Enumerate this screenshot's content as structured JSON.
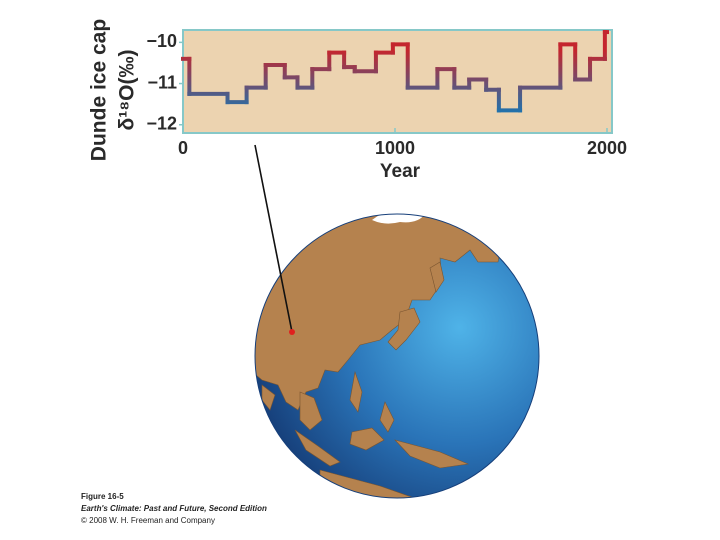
{
  "chart_data": {
    "type": "step",
    "ylabel": [
      "Dunde ice cap",
      "δ¹⁸O(‰)"
    ],
    "xlabel": "Year",
    "x": [
      0,
      30,
      210,
      300,
      390,
      480,
      540,
      610,
      690,
      760,
      810,
      910,
      990,
      1060,
      1200,
      1280,
      1350,
      1430,
      1490,
      1590,
      1780,
      1850,
      1920,
      1990
    ],
    "values": [
      -10.4,
      -11.25,
      -11.45,
      -11.1,
      -10.55,
      -10.85,
      -11.1,
      -10.65,
      -10.25,
      -10.6,
      -10.7,
      -10.25,
      -10.05,
      -11.1,
      -10.65,
      -11.1,
      -10.9,
      -11.15,
      -11.65,
      -11.1,
      -10.05,
      -10.9,
      -10.4,
      -9.75
    ],
    "color_high": "#c4262e",
    "color_low": "#1f72ad",
    "xlim": [
      0,
      2000
    ],
    "ylim": [
      -12.2,
      -9.7
    ],
    "xticks": [
      0,
      1000,
      2000
    ],
    "yticks": [
      {
        "value": -10,
        "label": "−10"
      },
      {
        "value": -11,
        "label": "−11"
      },
      {
        "value": -12,
        "label": "−12"
      }
    ],
    "caption": [
      "Figure 16-5",
      "Earth's Climate: Past and Future, Second Edition",
      "© 2008 W. H. Freeman and Company"
    ]
  }
}
